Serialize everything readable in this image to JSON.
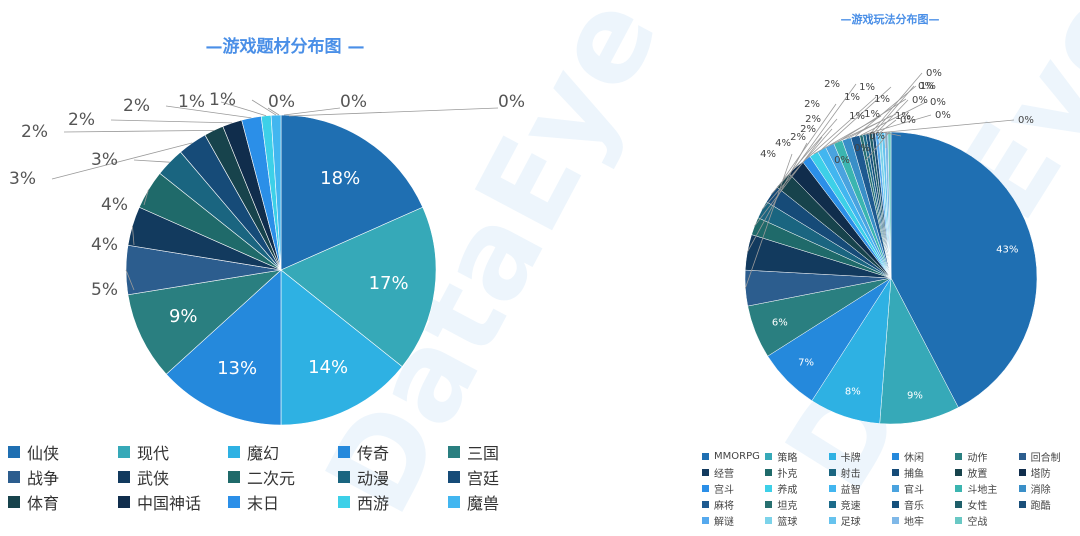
{
  "watermark": "DataEye",
  "chart_data": [
    {
      "type": "pie",
      "title": "—游戏题材分布图 —",
      "categories": [
        "仙侠",
        "现代",
        "魔幻",
        "传奇",
        "三国",
        "战争",
        "武侠",
        "二次元",
        "动漫",
        "宫廷",
        "体育",
        "中国神话",
        "末日",
        "西游",
        "魔兽"
      ],
      "values": [
        18,
        17,
        14,
        13,
        9,
        5,
        4,
        4,
        3,
        3,
        2,
        2,
        2,
        1,
        1
      ],
      "labels": [
        "18%",
        "17%",
        "14%",
        "13%",
        "9%",
        "5%",
        "4%",
        "4%",
        "3%",
        "3%",
        "2%",
        "2%",
        "2%",
        "1%",
        "1%",
        "0%",
        "0%",
        "0%"
      ],
      "extra_slice_labels": [
        "0%",
        "0%",
        "0%"
      ],
      "colors": [
        "#1f6fb2",
        "#36a9b8",
        "#2eb1e3",
        "#2589dc",
        "#2a7f80",
        "#2c5d8e",
        "#123a5e",
        "#1f6a6a",
        "#1a6580",
        "#164b78",
        "#17434c",
        "#102d4c",
        "#2b8fe8",
        "#3dd0e8",
        "#42b6f0"
      ],
      "legend_placement": "bottom"
    },
    {
      "type": "pie",
      "title": "—游戏玩法分布图—",
      "categories": [
        "MMORPG",
        "策略",
        "卡牌",
        "休闲",
        "动作",
        "回合制",
        "经营",
        "扑克",
        "射击",
        "捕鱼",
        "放置",
        "塔防",
        "宫斗",
        "养成",
        "益智",
        "官斗",
        "斗地主",
        "消除",
        "麻将",
        "坦克",
        "竞速",
        "音乐",
        "女性",
        "跑酷",
        "解谜",
        "篮球",
        "足球",
        "地牢",
        "空战"
      ],
      "values": [
        43,
        9,
        8,
        7,
        6,
        4,
        4,
        2,
        2,
        2,
        2,
        2,
        1,
        1,
        1,
        1,
        1,
        1,
        1,
        0,
        0,
        0,
        0,
        0,
        0,
        0,
        0,
        0,
        0
      ],
      "labels": [
        "43%",
        "9%",
        "8%",
        "7%",
        "6%",
        "4%",
        "4%",
        "2%",
        "2%",
        "2%",
        "2%",
        "2%",
        "1%",
        "1%",
        "1%",
        "1%",
        "1%",
        "1%",
        "1%",
        "0%",
        "0%",
        "0%",
        "0%",
        "0%",
        "0%",
        "0%",
        "0%",
        "0%",
        "0%"
      ],
      "colors": [
        "#1f6fb2",
        "#36a9b8",
        "#2eb1e3",
        "#2589dc",
        "#2a7f80",
        "#2c5d8e",
        "#123a5e",
        "#1f6a6a",
        "#1a6580",
        "#164b78",
        "#17434c",
        "#102d4c",
        "#2b8fe8",
        "#3dd0e8",
        "#42b6f0",
        "#4aa3df",
        "#3bb5b0",
        "#3a8fc8",
        "#1e5a90",
        "#287070",
        "#1c6b8a",
        "#15507c",
        "#1f5f6a",
        "#1a4f7a",
        "#55a9ee",
        "#7cd3ea",
        "#66c3ee",
        "#7fb8e8",
        "#69c8c4"
      ],
      "legend_placement": "bottom"
    }
  ]
}
